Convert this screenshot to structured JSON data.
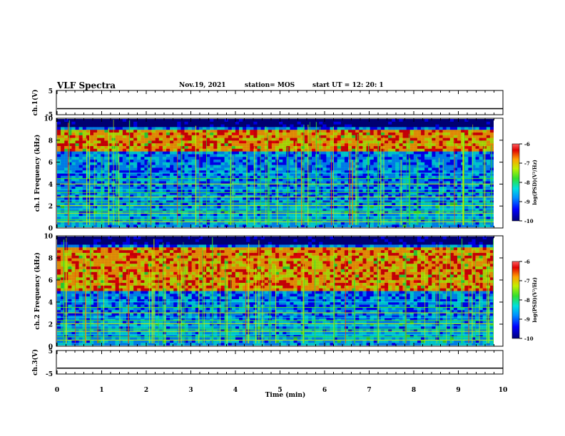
{
  "header": {
    "title": "VLF Spectra",
    "date": "Nov.19, 2021",
    "station": "station= MOS",
    "start": "start  UT =   12: 20: 1"
  },
  "colors": {
    "scale": [
      "#00007a",
      "#0000ff",
      "#0090ff",
      "#00e0e0",
      "#30e030",
      "#c0f000",
      "#ffa000",
      "#e00000",
      "#ff0000"
    ],
    "axis": "#000000",
    "line": "#000000",
    "background_panel": "#00003a"
  },
  "chart_data": [
    {
      "type": "line",
      "name": "ch1-voltage",
      "ylabel": "ch.1(V)",
      "ylim": [
        -5,
        5
      ],
      "yticks": [
        "5",
        "-5"
      ],
      "x": [
        0,
        10
      ],
      "values": [
        -2.5,
        -2.5
      ],
      "grid": false
    },
    {
      "type": "heatmap",
      "name": "ch1-spectrogram",
      "ylabel": "ch.1 Frequency (kHz)",
      "ylim": [
        0,
        10
      ],
      "xlim": [
        0,
        10
      ],
      "yticks": [
        "0",
        "2",
        "4",
        "6",
        "8",
        "10"
      ],
      "xlabel": "",
      "colorbar": {
        "label": "log(PSD)(V²/Hz)",
        "ticks": [
          "-6",
          "-7",
          "-8",
          "-9",
          "-10"
        ],
        "range": [
          -10,
          -6
        ]
      },
      "bands_khz": [
        0.5,
        0.7,
        1.0,
        1.3,
        1.5,
        1.7,
        2.0,
        2.3,
        2.5,
        2.8,
        3.2,
        3.5,
        4.0,
        4.5,
        5.0
      ],
      "emission_band_khz": [
        7,
        9
      ]
    },
    {
      "type": "heatmap",
      "name": "ch2-spectrogram",
      "ylabel": "ch.2 Frequency (kHz)",
      "ylim": [
        0,
        10
      ],
      "xlim": [
        0,
        10
      ],
      "yticks": [
        "0",
        "2",
        "4",
        "6",
        "8",
        "10"
      ],
      "colorbar": {
        "label": "log(PSD)(V²/Hz)",
        "ticks": [
          "-6",
          "-7",
          "-8",
          "-9",
          "-10"
        ],
        "range": [
          -10,
          -6
        ]
      },
      "bands_khz": [
        0.5,
        0.8,
        1.0,
        1.3,
        1.5,
        1.8,
        2.0,
        2.3,
        2.6,
        3.0,
        3.5,
        4.0
      ],
      "emission_band_khz": [
        5,
        9
      ]
    },
    {
      "type": "line",
      "name": "ch3-voltage",
      "ylabel": "ch.3(V)",
      "ylim": [
        -5,
        5
      ],
      "yticks": [
        "5",
        "-5"
      ],
      "x": [
        0,
        10
      ],
      "values": [
        -2.5,
        -2.5
      ],
      "xlabel": "Time  (min)",
      "xticks": [
        "0",
        "1",
        "2",
        "3",
        "4",
        "5",
        "6",
        "7",
        "8",
        "9",
        "10"
      ],
      "grid": false
    }
  ]
}
